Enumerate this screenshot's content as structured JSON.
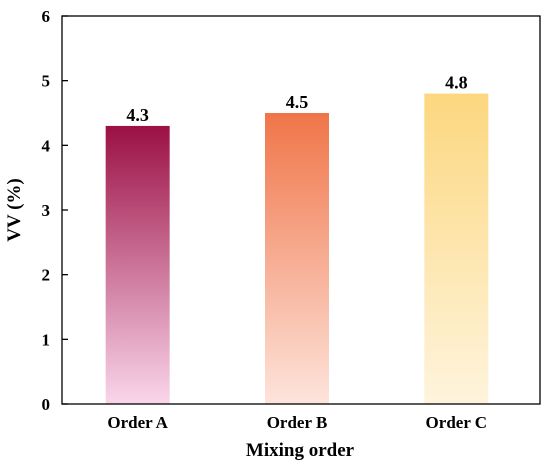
{
  "chart_data": {
    "type": "bar",
    "x_label": "Mixing order",
    "y_label": "VV (%)",
    "categories": [
      "Order A",
      "Order B",
      "Order C"
    ],
    "values": [
      4.3,
      4.5,
      4.8
    ],
    "colors": [
      "#9b1045",
      "#f07548",
      "#fcd77f"
    ],
    "fade_colors": [
      "#fad6ea",
      "#fde4dc",
      "#fef4dd"
    ],
    "ylim": [
      0,
      6
    ],
    "yticks": [
      0,
      1,
      2,
      3,
      4,
      5,
      6
    ]
  }
}
